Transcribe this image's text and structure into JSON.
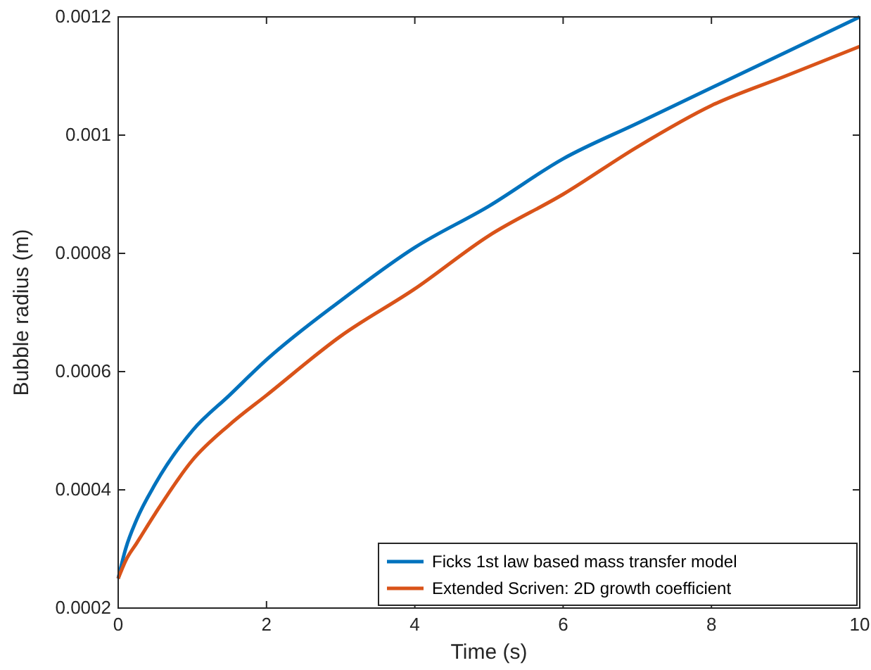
{
  "chart_data": {
    "type": "line",
    "xlabel": "Time (s)",
    "ylabel": "Bubble radius (m)",
    "x": [
      0,
      0.1,
      0.25,
      0.5,
      1,
      1.5,
      2,
      3,
      4,
      5,
      6,
      7,
      8,
      9,
      10
    ],
    "series": [
      {
        "name": "Ficks 1st law based mass transfer model",
        "color": "#0072bd",
        "values": [
          0.00025,
          0.0003,
          0.00035,
          0.00041,
          0.0005,
          0.00056,
          0.00062,
          0.00072,
          0.00081,
          0.00088,
          0.00096,
          0.00102,
          0.00108,
          0.00114,
          0.0012
        ]
      },
      {
        "name": "Extended Scriven: 2D growth coefficient",
        "color": "#d95319",
        "values": [
          0.00025,
          0.00028,
          0.00031,
          0.00036,
          0.00045,
          0.00051,
          0.00056,
          0.00066,
          0.00074,
          0.00083,
          0.0009,
          0.00098,
          0.00105,
          0.0011,
          0.00115
        ]
      }
    ],
    "xlim": [
      0,
      10
    ],
    "xticks": [
      0,
      2,
      4,
      6,
      8,
      10
    ],
    "ylim": [
      0.0002,
      0.0012
    ],
    "yticks": [
      0.0002,
      0.0004,
      0.0006,
      0.0008,
      0.001,
      0.0012
    ],
    "grid": false,
    "legend": "bottom right",
    "marker": "none",
    "line_style": "solid"
  }
}
